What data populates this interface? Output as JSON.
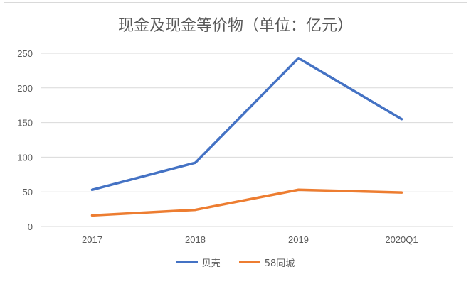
{
  "chart_data": {
    "type": "line",
    "title": "现金及现金等价物（单位：亿元）",
    "categories": [
      "2017",
      "2018",
      "2019",
      "2020Q1"
    ],
    "series": [
      {
        "name": "贝壳",
        "color": "#4472C4",
        "values": [
          53,
          92,
          243,
          155
        ]
      },
      {
        "name": "58同城",
        "color": "#ED7D31",
        "values": [
          16,
          24,
          53,
          49
        ]
      }
    ],
    "ylim": [
      0,
      250
    ],
    "yticks": [
      0,
      50,
      100,
      150,
      200,
      250
    ],
    "grid": true,
    "legend": "bottom"
  }
}
